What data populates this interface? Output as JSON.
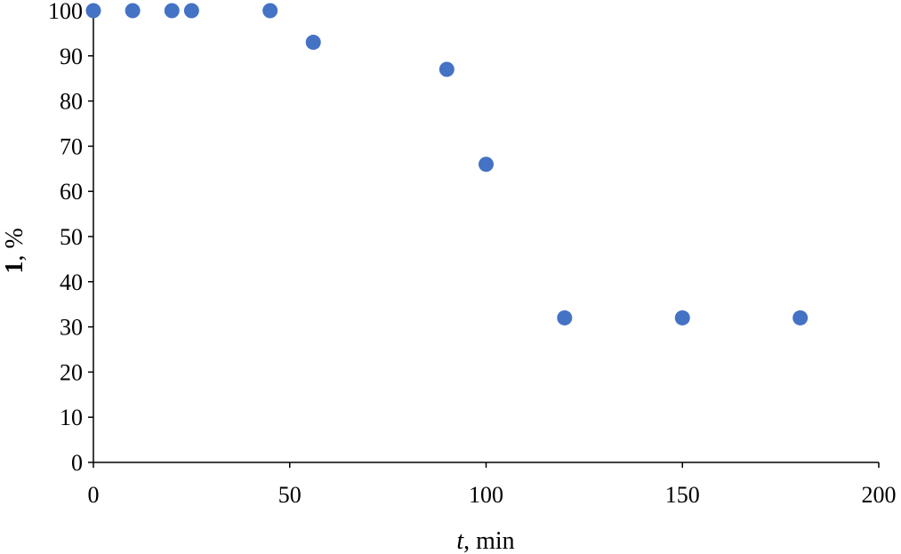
{
  "chart_data": {
    "type": "scatter",
    "xlabel": {
      "italic": "t",
      "rest": ", min"
    },
    "ylabel": {
      "bold": "1",
      "rest": ", %"
    },
    "xlim": [
      0,
      200
    ],
    "ylim": [
      0,
      100
    ],
    "xticks": [
      0,
      50,
      100,
      150,
      200
    ],
    "yticks": [
      0,
      10,
      20,
      30,
      40,
      50,
      60,
      70,
      80,
      90,
      100
    ],
    "grid": false,
    "legend": "none",
    "marker_color": "#4472C4",
    "series": [
      {
        "x": [
          0,
          10,
          20,
          25,
          45,
          56,
          90,
          100,
          120,
          150,
          180
        ],
        "y": [
          100,
          100,
          100,
          100,
          100,
          93,
          87,
          66,
          32,
          32,
          32
        ]
      }
    ]
  }
}
